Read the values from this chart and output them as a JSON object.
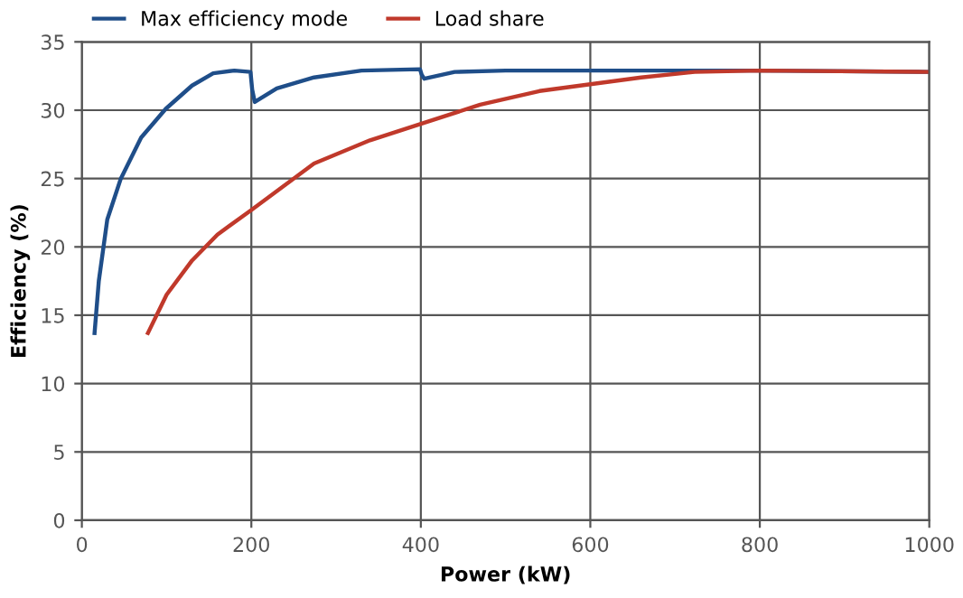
{
  "chart_data": {
    "type": "line",
    "xlabel": "Power (kW)",
    "ylabel": "Efficiency (%)",
    "xlim": [
      0,
      1000
    ],
    "xticks": [
      0,
      200,
      400,
      600,
      800,
      1000
    ],
    "ylim": [
      0,
      35
    ],
    "yticks": [
      0,
      5,
      10,
      15,
      20,
      25,
      30,
      35
    ],
    "grid": true,
    "legend": "top left",
    "series": [
      {
        "name": "Max efficiency mode",
        "color": "#1f4e89",
        "x": [
          15,
          20,
          30,
          46,
          70,
          99,
          130,
          155,
          180,
          199,
          201,
          204,
          230,
          274,
          330,
          399,
          401,
          404,
          440,
          500,
          600,
          800,
          1000
        ],
        "values": [
          13.7,
          17.5,
          22,
          25,
          28,
          30.1,
          31.8,
          32.7,
          32.9,
          32.8,
          31.5,
          30.6,
          31.6,
          32.4,
          32.9,
          33,
          32.6,
          32.3,
          32.8,
          32.9,
          32.9,
          32.9,
          32.8
        ]
      },
      {
        "name": "Load share",
        "color": "#c0392b",
        "x": [
          78,
          100,
          130,
          160,
          200,
          274,
          340,
          400,
          470,
          540,
          600,
          660,
          723,
          800,
          1000
        ],
        "values": [
          13.7,
          16.5,
          19,
          20.9,
          22.7,
          26.1,
          27.8,
          29,
          30.4,
          31.4,
          31.9,
          32.4,
          32.8,
          32.9,
          32.8
        ]
      }
    ]
  }
}
